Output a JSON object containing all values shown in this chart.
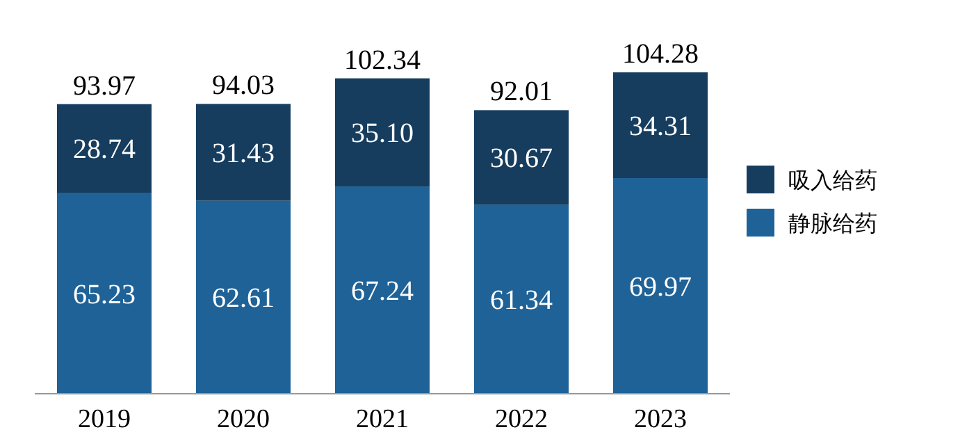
{
  "chart_data": {
    "type": "bar",
    "stacked": true,
    "legend": "right",
    "categories": [
      "2019",
      "2020",
      "2021",
      "2022",
      "2023"
    ],
    "series": [
      {
        "name": "静脉给药",
        "color": "#1f6297",
        "values": [
          65.23,
          62.61,
          67.24,
          61.34,
          69.97
        ],
        "value_labels": [
          "65.23",
          "62.61",
          "67.24",
          "61.34",
          "69.97"
        ]
      },
      {
        "name": "吸入给药",
        "color": "#163d5e",
        "values": [
          28.74,
          31.43,
          35.1,
          30.67,
          34.31
        ],
        "value_labels": [
          "28.74",
          "31.43",
          "35.10",
          "30.67",
          "34.31"
        ]
      }
    ],
    "totals": [
      "93.97",
      "94.03",
      "102.34",
      "92.01",
      "104.28"
    ]
  }
}
